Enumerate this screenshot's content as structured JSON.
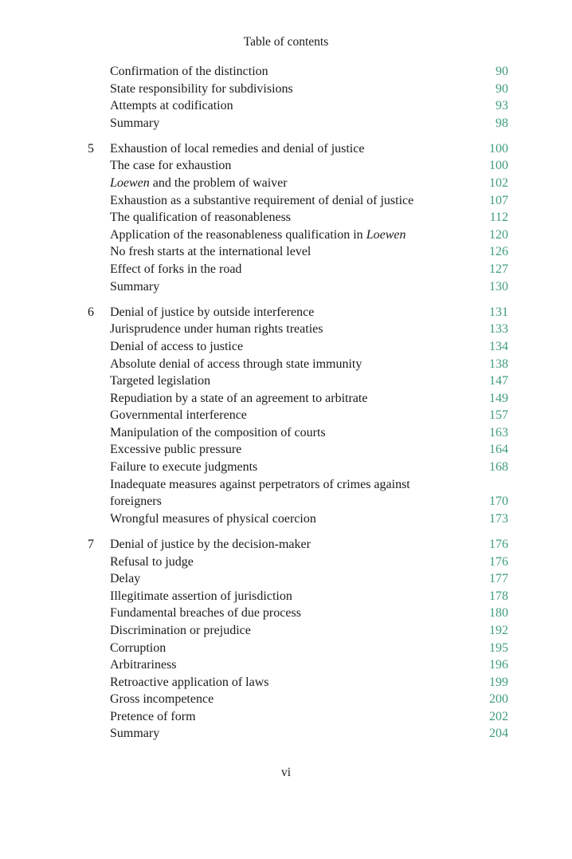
{
  "running_header": "Table of contents",
  "folio": "vi",
  "colors": {
    "page_number": "#3f9c7d",
    "text": "#1a1a1a"
  },
  "groups": [
    {
      "chapter": "",
      "entries": [
        {
          "title": "Confirmation of the distinction",
          "page": "90"
        },
        {
          "title": "State responsibility for subdivisions",
          "page": "90"
        },
        {
          "title": "Attempts at codification",
          "page": "93"
        },
        {
          "title": "Summary",
          "page": "98"
        }
      ]
    },
    {
      "chapter": "5",
      "entries": [
        {
          "title": "Exhaustion of local remedies and denial of justice",
          "page": "100"
        },
        {
          "title": "The case for exhaustion",
          "page": "100"
        },
        {
          "italic": "Loewen",
          "title": " and the problem of waiver",
          "page": "102"
        },
        {
          "title": "Exhaustion as a substantive requirement of denial of justice",
          "page": "107"
        },
        {
          "title": "The qualification of reasonableness",
          "page": "112"
        },
        {
          "title": "Application of the reasonableness qualification in ",
          "italic_after": "Loewen",
          "page": "120"
        },
        {
          "title": "No fresh starts at the international level",
          "page": "126"
        },
        {
          "title": "Effect of forks in the road",
          "page": "127"
        },
        {
          "title": "Summary",
          "page": "130"
        }
      ]
    },
    {
      "chapter": "6",
      "entries": [
        {
          "title": "Denial of justice by outside interference",
          "page": "131"
        },
        {
          "title": "Jurisprudence under human rights treaties",
          "page": "133"
        },
        {
          "title": "Denial of access to justice",
          "page": "134"
        },
        {
          "title": "Absolute denial of access through state immunity",
          "page": "138"
        },
        {
          "title": "Targeted legislation",
          "page": "147"
        },
        {
          "title": "Repudiation by a state of an agreement to arbitrate",
          "page": "149"
        },
        {
          "title": "Governmental interference",
          "page": "157"
        },
        {
          "title": "Manipulation of the composition of courts",
          "page": "163"
        },
        {
          "title": "Excessive public pressure",
          "page": "164"
        },
        {
          "title": "Failure to execute judgments",
          "page": "168"
        },
        {
          "title": "Inadequate measures against perpetrators of crimes against\nforeigners",
          "page": "170"
        },
        {
          "title": "Wrongful measures of physical coercion",
          "page": "173"
        }
      ]
    },
    {
      "chapter": "7",
      "entries": [
        {
          "title": "Denial of justice by the decision-maker",
          "page": "176"
        },
        {
          "title": "Refusal to judge",
          "page": "176"
        },
        {
          "title": "Delay",
          "page": "177"
        },
        {
          "title": "Illegitimate assertion of jurisdiction",
          "page": "178"
        },
        {
          "title": "Fundamental breaches of due process",
          "page": "180"
        },
        {
          "title": "Discrimination or prejudice",
          "page": "192"
        },
        {
          "title": "Corruption",
          "page": "195"
        },
        {
          "title": "Arbitrariness",
          "page": "196"
        },
        {
          "title": "Retroactive application of laws",
          "page": "199"
        },
        {
          "title": "Gross incompetence",
          "page": "200"
        },
        {
          "title": "Pretence of form",
          "page": "202"
        },
        {
          "title": "Summary",
          "page": "204"
        }
      ]
    }
  ]
}
